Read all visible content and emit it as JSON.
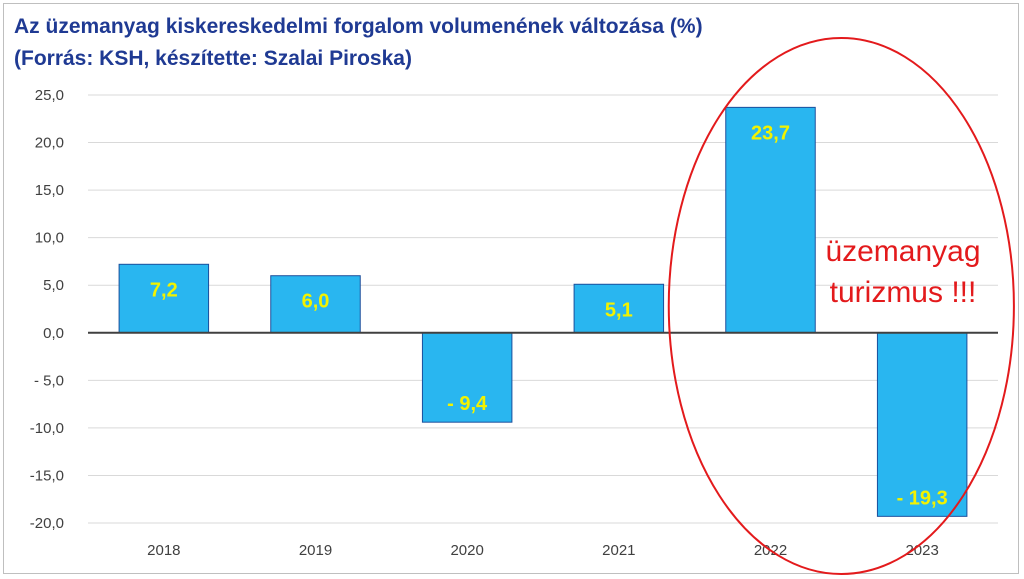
{
  "title_line1": "Az üzemanyag kiskereskedelmi forgalom volumenének változása (%)",
  "title_line2": "(Forrás: KSH, készítette: Szalai Piroska)",
  "chart_data": {
    "type": "bar",
    "title": "Az üzemanyag kiskereskedelmi forgalom volumenének változása (%)",
    "subtitle": "(Forrás: KSH, készítette: Szalai Piroska)",
    "categories": [
      "2018",
      "2019",
      "2020",
      "2021",
      "2022",
      "2023"
    ],
    "values": [
      7.2,
      6.0,
      -9.4,
      5.1,
      23.7,
      -19.3
    ],
    "data_labels": [
      "7,2",
      "6,0",
      "- 9,4",
      "5,1",
      "23,7",
      "- 19,3"
    ],
    "ylim": [
      -20,
      25
    ],
    "yticks": [
      25,
      20,
      15,
      10,
      5,
      0,
      -5,
      -10,
      -15,
      -20
    ],
    "ytick_labels": [
      "25,0",
      "20,0",
      "15,0",
      "10,0",
      "5,0",
      "0,0",
      "- 5,0",
      "-10,0",
      "-15,0",
      "-20,0"
    ],
    "grid": true,
    "bar_color": "#29b6f0",
    "label_color": "#f2f200",
    "annotation": {
      "lines": [
        "üzemanyag",
        "turizmus !!!"
      ],
      "color": "#e31a1c",
      "highlights": [
        "2022",
        "2023"
      ]
    }
  }
}
